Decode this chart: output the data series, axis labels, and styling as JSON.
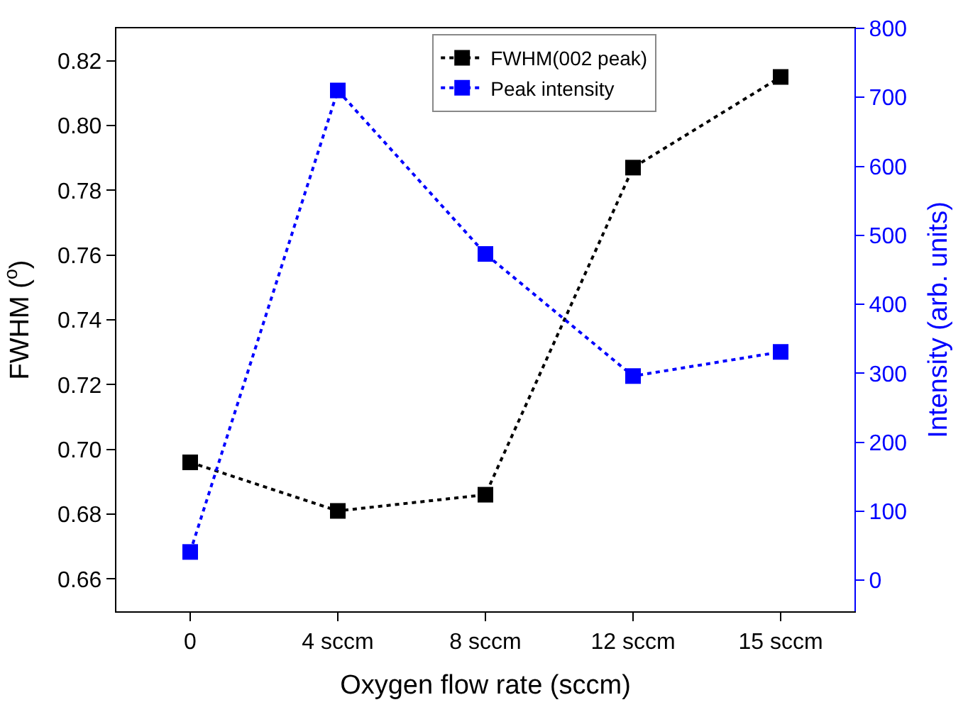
{
  "chart_data": {
    "type": "line",
    "categories": [
      "0",
      "4 sccm",
      "8 sccm",
      "12 sccm",
      "15 sccm"
    ],
    "xlabel": "Oxygen flow rate (sccm)",
    "ylabel": "FWHM ($^{o}$)",
    "y2label": "Intensity (arb. units)",
    "ylim": [
      0.65,
      0.83
    ],
    "yticks": [
      0.66,
      0.68,
      {
        "value": 0.7,
        "label": "0.70"
      },
      0.72,
      0.74,
      0.76,
      0.78,
      {
        "value": 0.8,
        "label": "0.80"
      },
      0.82
    ],
    "y2lim": [
      -45,
      800
    ],
    "y2ticks": [
      0,
      100,
      200,
      300,
      400,
      500,
      600,
      700,
      800
    ],
    "series": [
      {
        "name": "FWHM(002 peak)",
        "color": "#000000",
        "values": [
          0.696,
          0.681,
          0.686,
          0.787,
          0.815
        ]
      },
      {
        "name": "Peak intensity",
        "color": "#0000ff",
        "axis": "y2",
        "values": [
          41,
          710,
          473,
          296,
          331
        ]
      }
    ],
    "marker": "square",
    "line_style": "dotted",
    "legend": "top"
  }
}
